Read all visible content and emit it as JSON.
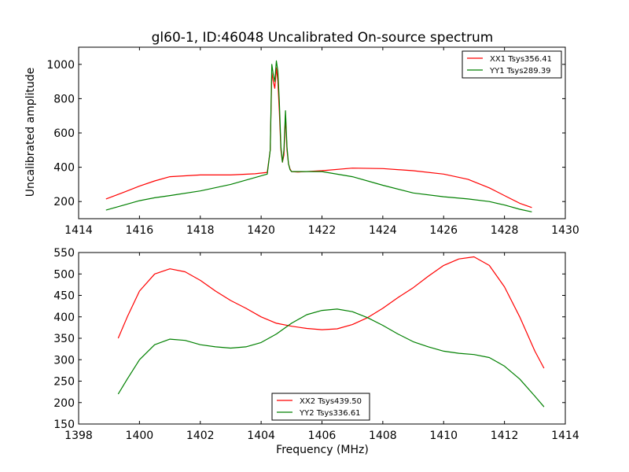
{
  "chart_data": [
    {
      "type": "line",
      "title": "gl60-1, ID:46048 Uncalibrated On-source spectrum",
      "xlabel": "",
      "ylabel": "Uncalibrated amplitude",
      "xlim": [
        1414,
        1430
      ],
      "ylim": [
        100,
        1100
      ],
      "xticks": [
        1414,
        1416,
        1418,
        1420,
        1422,
        1424,
        1426,
        1428,
        1430
      ],
      "yticks": [
        200,
        400,
        600,
        800,
        1000
      ],
      "legend_position": "upper-right",
      "series": [
        {
          "name": "XX1 Tsys356.41",
          "color": "#ff0000",
          "x": [
            1414.9,
            1415.5,
            1416.0,
            1416.5,
            1417.0,
            1418.0,
            1419.0,
            1419.8,
            1420.2,
            1420.3,
            1420.35,
            1420.4,
            1420.45,
            1420.5,
            1420.55,
            1420.6,
            1420.65,
            1420.7,
            1420.75,
            1420.8,
            1420.85,
            1420.9,
            1420.95,
            1421.0,
            1421.2,
            1422.0,
            1423.0,
            1424.0,
            1425.0,
            1426.0,
            1426.8,
            1427.5,
            1428.0,
            1428.5,
            1428.9
          ],
          "y": [
            215,
            255,
            290,
            320,
            345,
            355,
            355,
            362,
            370,
            500,
            950,
            900,
            860,
            980,
            900,
            720,
            500,
            430,
            470,
            700,
            500,
            420,
            390,
            375,
            372,
            380,
            395,
            392,
            380,
            360,
            330,
            280,
            235,
            190,
            165
          ]
        },
        {
          "name": "YY1 Tsys289.39",
          "color": "#008000",
          "x": [
            1414.9,
            1415.5,
            1416.0,
            1416.5,
            1417.0,
            1418.0,
            1419.0,
            1419.8,
            1420.2,
            1420.3,
            1420.35,
            1420.4,
            1420.45,
            1420.5,
            1420.55,
            1420.6,
            1420.65,
            1420.7,
            1420.75,
            1420.8,
            1420.85,
            1420.9,
            1420.95,
            1421.0,
            1421.2,
            1422.0,
            1423.0,
            1424.0,
            1425.0,
            1426.0,
            1426.8,
            1427.5,
            1428.0,
            1428.5,
            1428.9
          ],
          "y": [
            150,
            180,
            205,
            222,
            235,
            262,
            300,
            340,
            360,
            500,
            1000,
            940,
            900,
            1020,
            960,
            780,
            520,
            430,
            500,
            730,
            520,
            420,
            385,
            375,
            375,
            375,
            345,
            295,
            250,
            228,
            215,
            200,
            180,
            155,
            140
          ]
        }
      ]
    },
    {
      "type": "line",
      "title": "",
      "xlabel": "Frequency (MHz)",
      "ylabel": "",
      "xlim": [
        1398,
        1414
      ],
      "ylim": [
        150,
        550
      ],
      "xticks": [
        1398,
        1400,
        1402,
        1404,
        1406,
        1408,
        1410,
        1412,
        1414
      ],
      "yticks": [
        150,
        200,
        250,
        300,
        350,
        400,
        450,
        500,
        550
      ],
      "legend_position": "lower-center",
      "series": [
        {
          "name": "XX2 Tsys439.50",
          "color": "#ff0000",
          "x": [
            1399.3,
            1399.6,
            1400.0,
            1400.5,
            1401.0,
            1401.5,
            1402.0,
            1402.5,
            1403.0,
            1403.5,
            1404.0,
            1404.5,
            1405.0,
            1405.5,
            1406.0,
            1406.5,
            1407.0,
            1407.5,
            1408.0,
            1408.5,
            1409.0,
            1409.5,
            1410.0,
            1410.5,
            1411.0,
            1411.5,
            1412.0,
            1412.5,
            1413.0,
            1413.3
          ],
          "y": [
            350,
            400,
            460,
            500,
            512,
            505,
            485,
            460,
            438,
            420,
            400,
            385,
            378,
            373,
            370,
            372,
            382,
            398,
            420,
            445,
            468,
            495,
            520,
            535,
            540,
            520,
            470,
            400,
            320,
            280
          ]
        },
        {
          "name": "YY2 Tsys336.61",
          "color": "#008000",
          "x": [
            1399.3,
            1399.6,
            1400.0,
            1400.5,
            1401.0,
            1401.5,
            1402.0,
            1402.5,
            1403.0,
            1403.5,
            1404.0,
            1404.5,
            1405.0,
            1405.5,
            1406.0,
            1406.5,
            1407.0,
            1407.5,
            1408.0,
            1408.5,
            1409.0,
            1409.5,
            1410.0,
            1410.5,
            1411.0,
            1411.5,
            1412.0,
            1412.5,
            1413.0,
            1413.3
          ],
          "y": [
            220,
            255,
            300,
            335,
            348,
            345,
            335,
            330,
            327,
            330,
            340,
            360,
            385,
            405,
            415,
            418,
            412,
            398,
            380,
            360,
            342,
            330,
            320,
            315,
            312,
            305,
            285,
            255,
            215,
            190
          ]
        }
      ]
    }
  ]
}
